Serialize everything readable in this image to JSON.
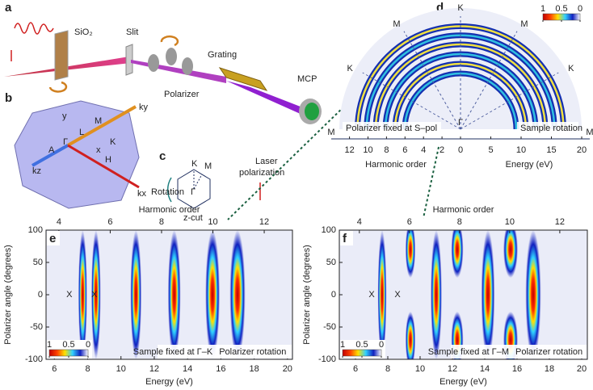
{
  "panels": {
    "a": {
      "label": "a",
      "sio2": "SiO₂",
      "slit": "Slit",
      "polarizer": "Polarizer",
      "grating": "Grating",
      "mcp": "MCP"
    },
    "b": {
      "label": "b",
      "ky": "ky",
      "kz": "kz",
      "kx": "kx",
      "y": "y",
      "x": "x",
      "L": "L",
      "M": "M",
      "gamma": "Γ",
      "A": "A",
      "K": "K",
      "H": "H"
    },
    "c": {
      "label": "c",
      "K": "K",
      "M": "M",
      "gamma": "Γ",
      "rotation": "Rotation",
      "laser": [
        "Laser",
        "polarization"
      ],
      "zcut": "z-cut"
    },
    "d": {
      "label": "d",
      "spoke_labels": [
        "M",
        "K",
        "M",
        "K",
        "M",
        "K",
        "M"
      ],
      "gamma": "Γ",
      "left_note": "Polarizer fixed at S–pol",
      "right_note": "Sample rotation",
      "harmonic_label": "Harmonic order",
      "energy_label": "Energy (eV)",
      "harmonic_ticks": [
        12,
        10,
        8,
        6,
        4,
        2,
        0
      ],
      "harmonic_lim": [
        0,
        13.1
      ],
      "energy_ticks": [
        0,
        5,
        10,
        15,
        20
      ],
      "energy_lim": [
        0,
        20
      ],
      "colorbar_ticks": [
        1,
        0.5,
        0
      ],
      "rings": [
        9.2,
        10.8,
        12.4,
        14.0,
        15.5,
        17.0
      ]
    },
    "e": {
      "label": "e",
      "top_label": "Harmonic order",
      "xlabel": "Energy (eV)",
      "ylabel": "Polarizer angle (degrees)",
      "xlim": [
        5.5,
        20.3
      ],
      "xticks": [
        6,
        8,
        10,
        12,
        14,
        16,
        18,
        20
      ],
      "ylim": [
        -100,
        100
      ],
      "yticks": [
        -100,
        -50,
        0,
        50,
        100
      ],
      "top_xlim": [
        3.5,
        13.1
      ],
      "top_xticks": [
        4,
        6,
        8,
        10,
        12
      ],
      "peaks": [
        7.7,
        8.5,
        10.9,
        13.2,
        15.5,
        17.0
      ],
      "split_peaks": [],
      "x_marks": [
        6.9,
        8.4
      ],
      "x_text": "X",
      "left_note": "Sample fixed at Γ–K",
      "right_note": "Polarizer rotation",
      "colorbar_ticks": [
        1,
        0.5,
        0
      ]
    },
    "f": {
      "label": "f",
      "top_label": "Harmonic order",
      "xlabel": "Energy (eV)",
      "ylabel": "Polarizer angle (degrees)",
      "xlim": [
        5,
        20.35
      ],
      "xticks": [
        6,
        8,
        10,
        12,
        14,
        16,
        18,
        20
      ],
      "ylim": [
        -100,
        100
      ],
      "yticks": [
        -100,
        -50,
        0,
        50,
        100
      ],
      "top_xlim": [
        3.2,
        13.1
      ],
      "top_xticks": [
        4,
        6,
        8,
        10,
        12
      ],
      "peaks": [
        7.65,
        11.0,
        14.2,
        17.0
      ],
      "split_peaks": [
        9.4,
        12.3,
        15.6
      ],
      "x_marks": [
        7.0,
        8.6
      ],
      "x_text": "X",
      "left_note": "Sample fixed at Γ–M",
      "right_note": "Polarizer rotation",
      "colorbar_ticks": [
        1,
        0.5,
        0
      ]
    }
  }
}
